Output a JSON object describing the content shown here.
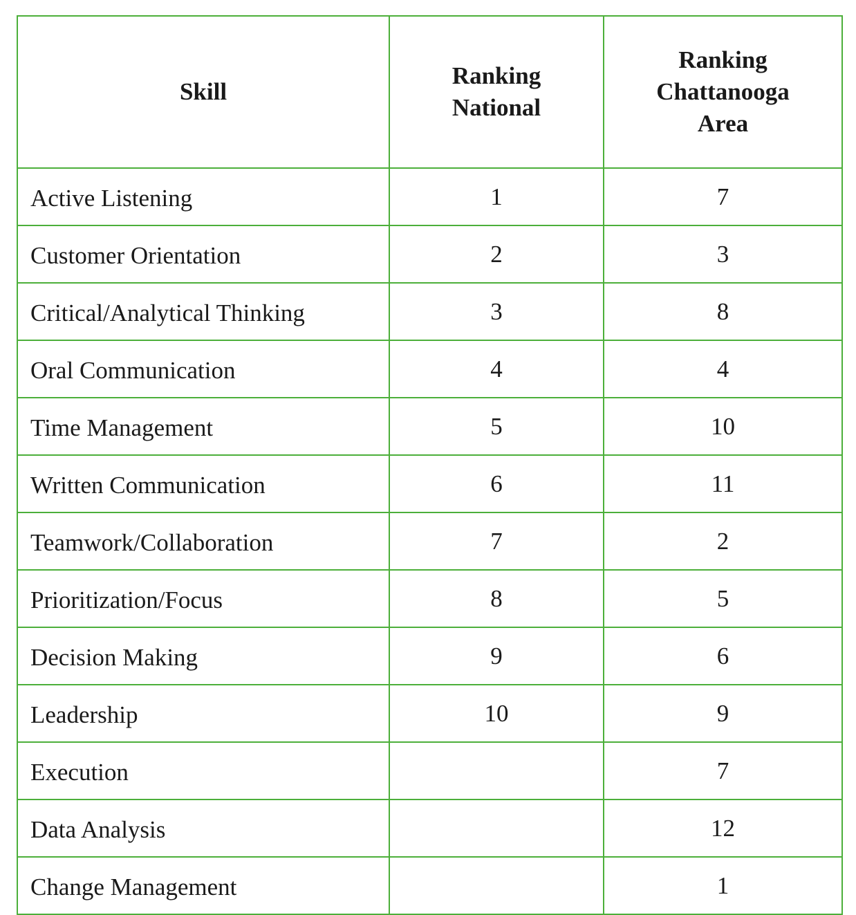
{
  "table": {
    "headers": {
      "skill": "Skill",
      "national": [
        "Ranking",
        "National"
      ],
      "chattanooga": [
        "Ranking",
        "Chattanooga",
        "Area"
      ]
    },
    "rows": [
      {
        "skill": "Active Listening",
        "national": "1",
        "chattanooga": "7"
      },
      {
        "skill": "Customer Orientation",
        "national": "2",
        "chattanooga": "3"
      },
      {
        "skill": "Critical/Analytical Thinking",
        "national": "3",
        "chattanooga": "8"
      },
      {
        "skill": "Oral Communication",
        "national": "4",
        "chattanooga": "4"
      },
      {
        "skill": "Time Management",
        "national": "5",
        "chattanooga": "10"
      },
      {
        "skill": "Written Communication",
        "national": "6",
        "chattanooga": "11"
      },
      {
        "skill": "Teamwork/Collaboration",
        "national": "7",
        "chattanooga": "2"
      },
      {
        "skill": "Prioritization/Focus",
        "national": "8",
        "chattanooga": "5"
      },
      {
        "skill": "Decision Making",
        "national": "9",
        "chattanooga": "6"
      },
      {
        "skill": "Leadership",
        "national": "10",
        "chattanooga": "9"
      },
      {
        "skill": "Execution",
        "national": "",
        "chattanooga": "7"
      },
      {
        "skill": "Data Analysis",
        "national": "",
        "chattanooga": "12"
      },
      {
        "skill": "Change Management",
        "national": "",
        "chattanooga": "1"
      }
    ]
  },
  "colors": {
    "border": "#4caf3a",
    "text": "#1a1a1a",
    "background": "#ffffff"
  }
}
